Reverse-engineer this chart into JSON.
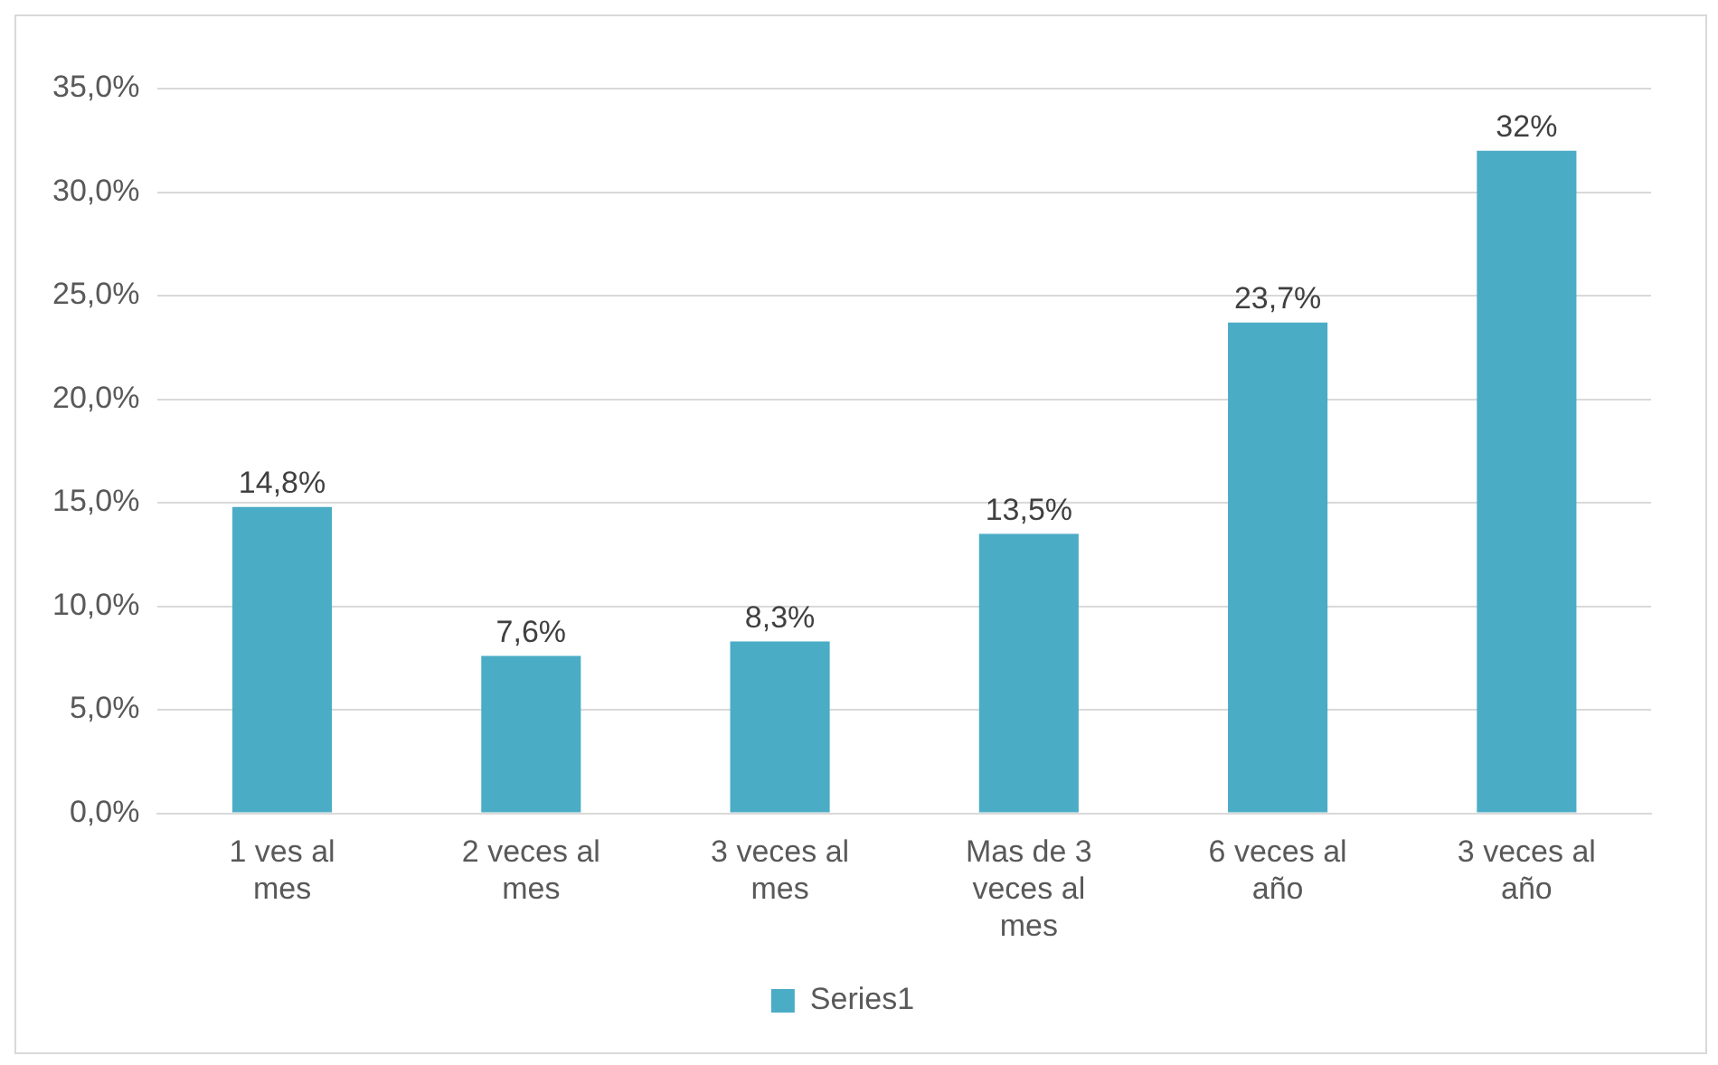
{
  "chart_data": {
    "type": "bar",
    "categories": [
      "1 ves al mes",
      "2 veces al mes",
      "3 veces al mes",
      "Mas de 3 veces al mes",
      "6 veces al año",
      "3 veces al año"
    ],
    "series": [
      {
        "name": "Series1",
        "color": "#4bacc6",
        "values": [
          14.8,
          7.6,
          8.3,
          13.5,
          23.7,
          32
        ],
        "value_labels": [
          "14,8%",
          "7,6%",
          "8,3%",
          "13,5%",
          "23,7%",
          "32%"
        ]
      }
    ],
    "ylim": [
      0,
      35
    ],
    "yticks": [
      {
        "value": 0,
        "label": "0,0%"
      },
      {
        "value": 5,
        "label": "5,0%"
      },
      {
        "value": 10,
        "label": "10,0%"
      },
      {
        "value": 15,
        "label": "15,0%"
      },
      {
        "value": 20,
        "label": "20,0%"
      },
      {
        "value": 25,
        "label": "25,0%"
      },
      {
        "value": 30,
        "label": "30,0%"
      },
      {
        "value": 35,
        "label": "35,0%"
      }
    ],
    "grid": "y",
    "legend": "bottom"
  }
}
